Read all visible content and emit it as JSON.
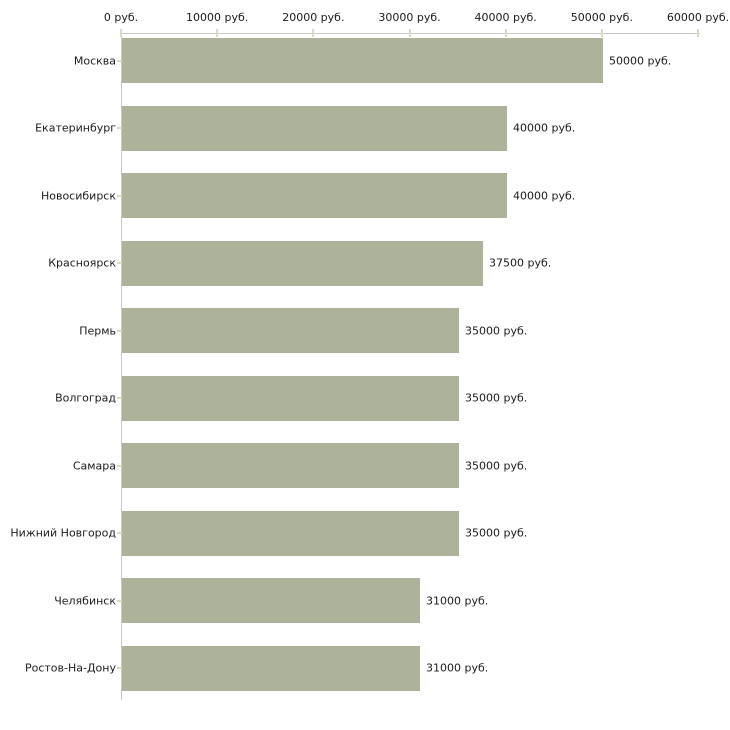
{
  "chart_data": {
    "type": "bar",
    "orientation": "horizontal",
    "title": "",
    "unit": "руб.",
    "categories": [
      "Москва",
      "Екатеринбург",
      "Новосибирск",
      "Красноярск",
      "Пермь",
      "Волгоград",
      "Самара",
      "Нижний Новгород",
      "Челябинск",
      "Ростов-На-Дону"
    ],
    "values": [
      50000,
      40000,
      40000,
      37500,
      35000,
      35000,
      35000,
      35000,
      31000,
      31000
    ],
    "value_labels": [
      "50000 руб.",
      "40000 руб.",
      "40000 руб.",
      "37500 руб.",
      "35000 руб.",
      "35000 руб.",
      "35000 руб.",
      "35000 руб.",
      "31000 руб.",
      "31000 руб."
    ],
    "x_axis": {
      "position": "top",
      "min": 0,
      "max": 60000,
      "tick_interval": 10000,
      "tick_values": [
        0,
        10000,
        20000,
        30000,
        40000,
        50000,
        60000
      ],
      "tick_labels": [
        "0 руб.",
        "10000 руб.",
        "20000 руб.",
        "30000 руб.",
        "40000 руб.",
        "50000 руб.",
        "60000 руб."
      ]
    },
    "legend": "none",
    "grid": false,
    "colors": {
      "bar": "#adb29b",
      "tick_mark": "#d9dcc3",
      "axis_line": "#c9c9c9",
      "text": "#1c1c1c",
      "background": "#ffffff"
    }
  }
}
